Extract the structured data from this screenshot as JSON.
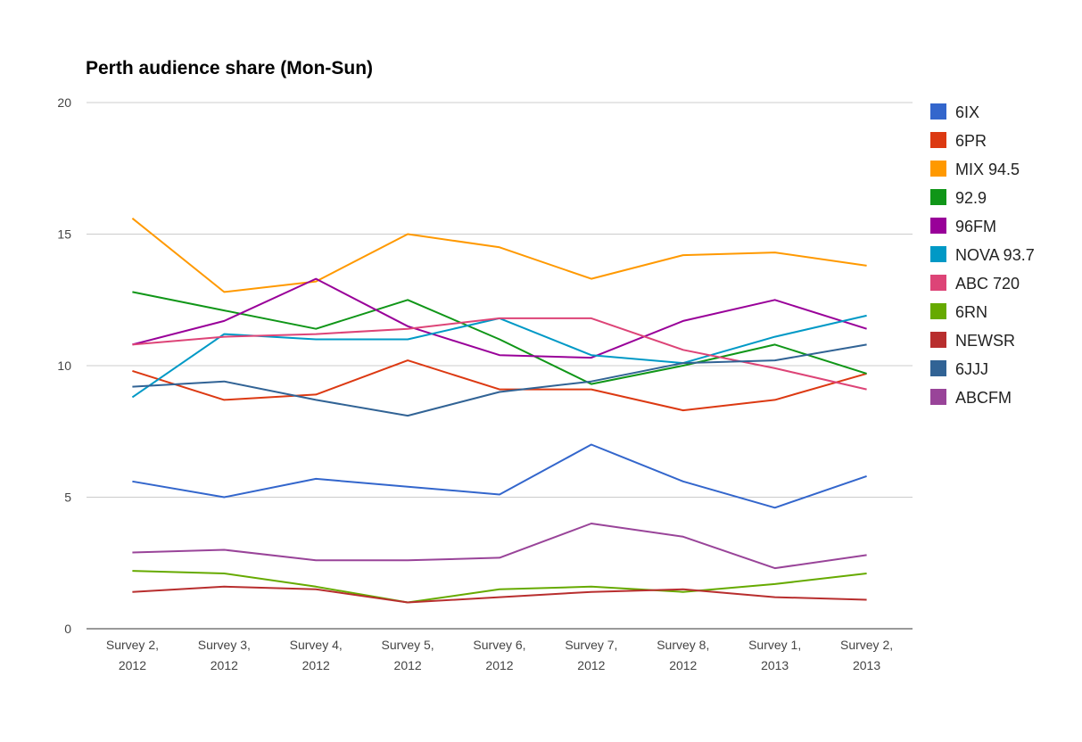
{
  "chart_data": {
    "type": "line",
    "title": "Perth audience share (Mon-Sun)",
    "xlabel": "",
    "ylabel": "",
    "ylim": [
      0,
      20
    ],
    "yticks": [
      "0",
      "5",
      "10",
      "15",
      "20"
    ],
    "categories": [
      [
        "Survey 2,",
        "2012"
      ],
      [
        "Survey 3,",
        "2012"
      ],
      [
        "Survey 4,",
        "2012"
      ],
      [
        "Survey 5,",
        "2012"
      ],
      [
        "Survey 6,",
        "2012"
      ],
      [
        "Survey 7,",
        "2012"
      ],
      [
        "Survey 8,",
        "2012"
      ],
      [
        "Survey 1,",
        "2013"
      ],
      [
        "Survey 2,",
        "2013"
      ]
    ],
    "grid": true,
    "legend_position": "right",
    "series": [
      {
        "name": "6IX",
        "color": "#3366cc",
        "values": [
          5.6,
          5.0,
          5.7,
          5.4,
          5.1,
          7.0,
          5.6,
          4.6,
          5.8
        ]
      },
      {
        "name": "6PR",
        "color": "#dc3912",
        "values": [
          9.8,
          8.7,
          8.9,
          10.2,
          9.1,
          9.1,
          8.3,
          8.7,
          9.7
        ]
      },
      {
        "name": "MIX 94.5",
        "color": "#ff9900",
        "values": [
          15.6,
          12.8,
          13.2,
          15.0,
          14.5,
          13.3,
          14.2,
          14.3,
          13.8
        ]
      },
      {
        "name": "92.9",
        "color": "#109618",
        "values": [
          12.8,
          12.1,
          11.4,
          12.5,
          11.0,
          9.3,
          10.0,
          10.8,
          9.7
        ]
      },
      {
        "name": "96FM",
        "color": "#990099",
        "values": [
          10.8,
          11.7,
          13.3,
          11.5,
          10.4,
          10.3,
          11.7,
          12.5,
          11.4
        ]
      },
      {
        "name": "NOVA 93.7",
        "color": "#0099c6",
        "values": [
          8.8,
          11.2,
          11.0,
          11.0,
          11.8,
          10.4,
          10.1,
          11.1,
          11.9
        ]
      },
      {
        "name": "ABC 720",
        "color": "#dd4477",
        "values": [
          10.8,
          11.1,
          11.2,
          11.4,
          11.8,
          11.8,
          10.6,
          9.9,
          9.1
        ]
      },
      {
        "name": "6RN",
        "color": "#66aa00",
        "values": [
          2.2,
          2.1,
          1.6,
          1.0,
          1.5,
          1.6,
          1.4,
          1.7,
          2.1
        ]
      },
      {
        "name": "NEWSR",
        "color": "#b82e2e",
        "values": [
          1.4,
          1.6,
          1.5,
          1.0,
          1.2,
          1.4,
          1.5,
          1.2,
          1.1
        ]
      },
      {
        "name": "6JJJ",
        "color": "#316395",
        "values": [
          9.2,
          9.4,
          8.7,
          8.1,
          9.0,
          9.4,
          10.1,
          10.2,
          10.8
        ]
      },
      {
        "name": "ABCFM",
        "color": "#994499",
        "values": [
          2.9,
          3.0,
          2.6,
          2.6,
          2.7,
          4.0,
          3.5,
          2.3,
          2.8
        ]
      }
    ]
  }
}
